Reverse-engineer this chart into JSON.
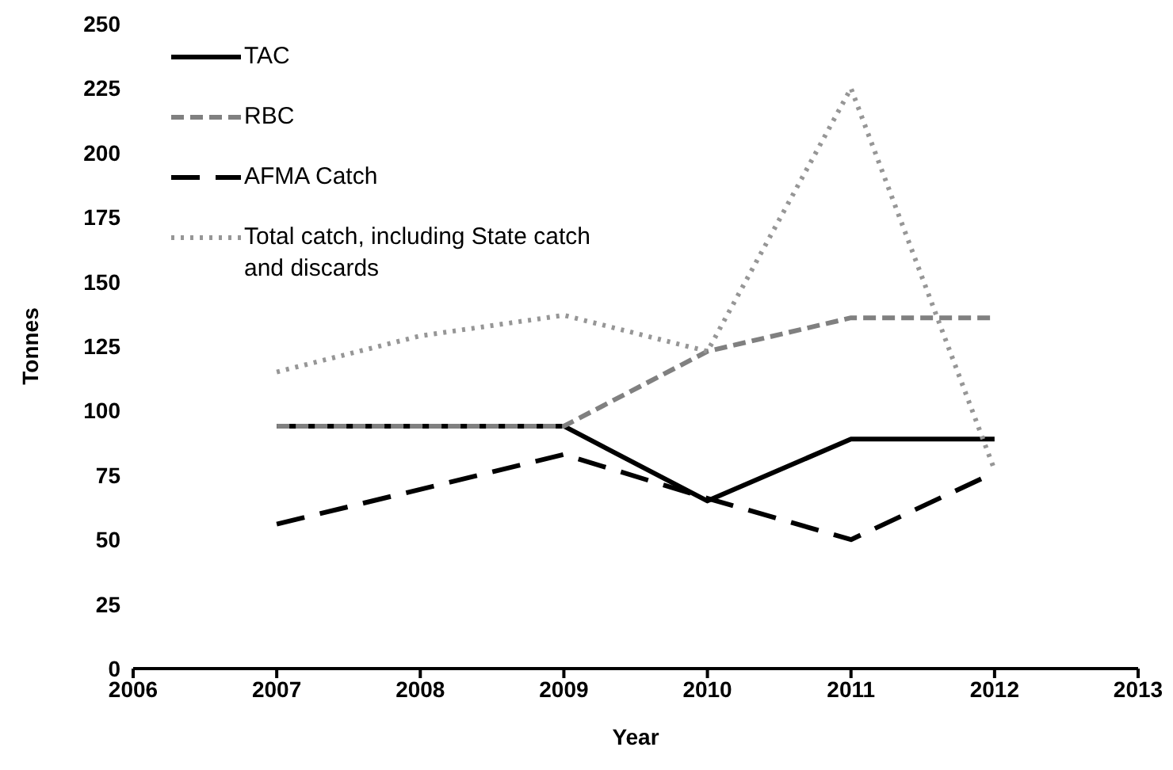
{
  "chart_data": {
    "type": "line",
    "xlabel": "Year",
    "ylabel": "Tonnes",
    "xlim": [
      2006,
      2013
    ],
    "xticks": [
      2006,
      2007,
      2008,
      2009,
      2010,
      2011,
      2012,
      2013
    ],
    "ylim": [
      0,
      250
    ],
    "yticks": [
      0,
      25,
      50,
      75,
      100,
      125,
      150,
      175,
      200,
      225,
      250
    ],
    "grid": false,
    "legend": "top left",
    "marker": "none",
    "series": [
      {
        "name": "TAC",
        "color": "#000000",
        "line_style": "solid",
        "x": [
          2007,
          2009,
          2010,
          2011,
          2012
        ],
        "values": [
          94,
          94,
          65,
          89,
          89
        ]
      },
      {
        "name": "RBC",
        "color": "#808080",
        "line_style": "dashed",
        "x": [
          2007,
          2009,
          2010,
          2011,
          2012
        ],
        "values": [
          94,
          94,
          123,
          136,
          136
        ]
      },
      {
        "name": "AFMA Catch",
        "color": "#000000",
        "line_style": "dashed",
        "x": [
          2007,
          2009,
          2010,
          2011,
          2012
        ],
        "values": [
          56,
          83,
          66,
          50,
          76
        ]
      },
      {
        "name": "Total catch, including State catch and discards",
        "color": "#969696",
        "line_style": "dotted",
        "x": [
          2007,
          2008,
          2009,
          2010,
          2011,
          2012
        ],
        "values": [
          115,
          129,
          137,
          123,
          225,
          77
        ]
      }
    ]
  }
}
